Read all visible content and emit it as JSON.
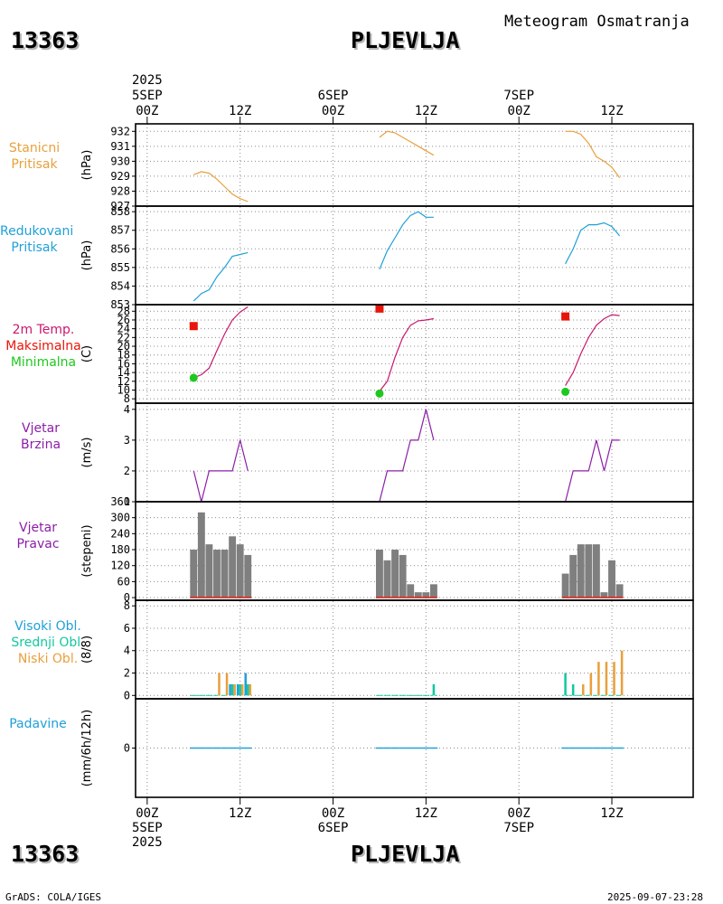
{
  "header": {
    "station_id": "13363",
    "station_name": "PLJEVLJA",
    "product": "Meteogram Osmatranja",
    "year": "2025"
  },
  "footer": {
    "credit": "GrADS: COLA/IGES",
    "timestamp": "2025-09-07-23:28"
  },
  "time_axis": {
    "top_labels": [
      {
        "line1": "5SEP",
        "line2": "00Z",
        "hour": 0
      },
      {
        "line1": "",
        "line2": "12Z",
        "hour": 12
      },
      {
        "line1": "6SEP",
        "line2": "00Z",
        "hour": 24
      },
      {
        "line1": "",
        "line2": "12Z",
        "hour": 36
      },
      {
        "line1": "7SEP",
        "line2": "00Z",
        "hour": 48
      },
      {
        "line1": "",
        "line2": "12Z",
        "hour": 60
      }
    ],
    "range_hours": [
      -1.5,
      70.5
    ]
  },
  "panels": {
    "pressure": {
      "labels": [
        "Stanicni",
        "Pritisak"
      ],
      "unit": "(hPa)",
      "color": "#e8a03c"
    },
    "reduced": {
      "labels": [
        "Redukovani",
        "Pritisak"
      ],
      "unit": "(hPa)",
      "color": "#1fa0d8"
    },
    "temperature": {
      "label_lines": [
        {
          "text": "2m Temp.",
          "color": "#c8186e"
        },
        {
          "text": "Maksimalna",
          "color": "#e8160a"
        },
        {
          "text": "Minimalna",
          "color": "#1ec81e"
        }
      ],
      "unit": "(C)"
    },
    "wind_speed": {
      "labels": [
        "Vjetar",
        "Brzina"
      ],
      "unit": "(m/s)",
      "color": "#8c1ea8"
    },
    "wind_dir": {
      "labels": [
        "Vjetar",
        "Pravac"
      ],
      "unit": "(stepeni)",
      "color": "#8c1ea8"
    },
    "clouds": {
      "label_lines": [
        {
          "text": "Visoki Obl.",
          "color": "#1fa0d8"
        },
        {
          "text": "Srednji Obl.",
          "color": "#12c8a0"
        },
        {
          "text": "Niski Obl.",
          "color": "#e8a03c"
        }
      ],
      "unit": "(8/8)"
    },
    "precip": {
      "labels": [
        "Padavine"
      ],
      "unit": "(mm/6h/12h)",
      "color": "#1fa0d8"
    }
  },
  "chart_data": [
    {
      "type": "line",
      "id": "station_pressure",
      "title": "Stanicni Pritisak",
      "ylabel": "(hPa)",
      "ylim": [
        927,
        932.5
      ],
      "yticks": [
        927,
        928,
        929,
        930,
        931,
        932
      ],
      "series": [
        {
          "name": "5SEP",
          "x": [
            6,
            7,
            8,
            9,
            10,
            11,
            12,
            13
          ],
          "values": [
            929.1,
            929.3,
            929.2,
            928.8,
            928.3,
            927.8,
            927.5,
            927.3
          ]
        },
        {
          "name": "6SEP",
          "x": [
            30,
            31,
            32,
            33,
            34,
            35,
            36,
            37
          ],
          "values": [
            931.6,
            932.0,
            931.9,
            931.6,
            931.3,
            931.0,
            930.7,
            930.4
          ]
        },
        {
          "name": "7SEP",
          "x": [
            54,
            55,
            56,
            57,
            58,
            59,
            60,
            61
          ],
          "values": [
            932.0,
            932.0,
            931.8,
            931.2,
            930.3,
            930.0,
            929.6,
            928.9
          ]
        }
      ]
    },
    {
      "type": "line",
      "id": "reduced_pressure",
      "title": "Redukovani Pritisak",
      "ylabel": "(hPa)",
      "ylim": [
        853,
        858.3
      ],
      "yticks": [
        853,
        854,
        855,
        856,
        857,
        858
      ],
      "series": [
        {
          "name": "5SEP",
          "x": [
            6,
            7,
            8,
            9,
            10,
            11,
            12,
            13
          ],
          "values": [
            853.2,
            853.6,
            853.8,
            854.5,
            855.0,
            855.6,
            855.7,
            855.8
          ]
        },
        {
          "name": "6SEP",
          "x": [
            30,
            31,
            32,
            33,
            34,
            35,
            36,
            37
          ],
          "values": [
            854.9,
            855.9,
            856.6,
            857.3,
            857.8,
            858.0,
            857.7,
            857.7
          ]
        },
        {
          "name": "7SEP",
          "x": [
            54,
            55,
            56,
            57,
            58,
            59,
            60,
            61
          ],
          "values": [
            855.2,
            856.0,
            857.0,
            857.3,
            857.3,
            857.4,
            857.2,
            856.7
          ]
        }
      ]
    },
    {
      "type": "line",
      "id": "temperature",
      "title": "2m Temp.",
      "ylabel": "(C)",
      "ylim": [
        7,
        29.5
      ],
      "yticks": [
        8,
        10,
        12,
        14,
        16,
        18,
        20,
        22,
        24,
        26,
        28
      ],
      "series": [
        {
          "name": "5SEP",
          "x": [
            6,
            7,
            8,
            9,
            10,
            11,
            12,
            13
          ],
          "values": [
            12.8,
            13.5,
            15.0,
            19.0,
            22.8,
            26.0,
            27.8,
            29.0
          ]
        },
        {
          "name": "6SEP",
          "x": [
            30,
            31,
            32,
            33,
            34,
            35,
            36,
            37
          ],
          "values": [
            9.7,
            12.0,
            17.5,
            22.0,
            24.8,
            25.8,
            26.0,
            26.3
          ]
        },
        {
          "name": "7SEP",
          "x": [
            54,
            55,
            56,
            57,
            58,
            59,
            60,
            61
          ],
          "values": [
            11.0,
            14.0,
            18.3,
            22.0,
            24.8,
            26.3,
            27.2,
            27.0
          ]
        }
      ],
      "maximum": [
        {
          "x": 6,
          "value": 24.6
        },
        {
          "x": 30,
          "value": 28.6
        },
        {
          "x": 54,
          "value": 26.8
        }
      ],
      "minimum": [
        {
          "x": 6,
          "value": 12.8
        },
        {
          "x": 30,
          "value": 9.2
        },
        {
          "x": 54,
          "value": 9.6
        }
      ]
    },
    {
      "type": "line",
      "id": "wind_speed",
      "title": "Vjetar Brzina",
      "ylabel": "(m/s)",
      "ylim": [
        1,
        4.2
      ],
      "yticks": [
        1,
        2,
        3,
        4
      ],
      "series": [
        {
          "name": "5SEP",
          "x": [
            6,
            7,
            8,
            9,
            10,
            11,
            12,
            13
          ],
          "values": [
            2,
            1,
            2,
            2,
            2,
            2,
            3,
            2
          ]
        },
        {
          "name": "6SEP",
          "x": [
            30,
            31,
            32,
            33,
            34,
            35,
            36,
            37
          ],
          "values": [
            1,
            2,
            2,
            2,
            3,
            3,
            4,
            3
          ]
        },
        {
          "name": "7SEP",
          "x": [
            54,
            55,
            56,
            57,
            58,
            59,
            60,
            61
          ],
          "values": [
            1,
            2,
            2,
            2,
            3,
            2,
            3,
            3
          ]
        }
      ]
    },
    {
      "type": "bar",
      "id": "wind_direction",
      "title": "Vjetar Pravac",
      "ylabel": "(stepeni)",
      "ylim": [
        -10,
        360
      ],
      "yticks": [
        0,
        60,
        120,
        180,
        240,
        300,
        360
      ],
      "x": [
        6,
        7,
        8,
        9,
        10,
        11,
        12,
        13,
        30,
        31,
        32,
        33,
        34,
        35,
        36,
        37,
        54,
        55,
        56,
        57,
        58,
        59,
        60,
        61
      ],
      "values": [
        180,
        320,
        200,
        180,
        180,
        230,
        200,
        160,
        180,
        140,
        180,
        160,
        50,
        20,
        20,
        50,
        90,
        160,
        200,
        200,
        200,
        20,
        140,
        50
      ]
    },
    {
      "type": "bar",
      "id": "clouds",
      "title": "Oblaci",
      "ylabel": "(8/8)",
      "ylim": [
        -0.3,
        8.5
      ],
      "yticks": [
        0,
        2,
        4,
        6,
        8
      ],
      "x": [
        6,
        7,
        8,
        9,
        10,
        11,
        12,
        13,
        30,
        31,
        32,
        33,
        34,
        35,
        36,
        37,
        54,
        55,
        56,
        57,
        58,
        59,
        60,
        61
      ],
      "series": [
        {
          "name": "Visoki Obl.",
          "values": [
            0,
            0,
            0,
            0,
            0,
            1,
            1,
            2,
            0,
            0,
            0,
            0,
            0,
            0,
            0,
            0,
            0,
            0,
            0,
            0,
            0,
            0,
            0,
            0
          ]
        },
        {
          "name": "Srednji Obl.",
          "values": [
            0,
            0,
            0,
            0,
            0,
            1,
            1,
            1,
            0,
            0,
            0,
            0,
            0,
            0,
            0,
            1,
            2,
            1,
            0,
            0,
            0,
            0,
            0,
            0
          ]
        },
        {
          "name": "Niski Obl.",
          "values": [
            0,
            0,
            0,
            2,
            2,
            1,
            1,
            1,
            0,
            0,
            0,
            0,
            0,
            0,
            0,
            0,
            0,
            0,
            1,
            2,
            3,
            3,
            3,
            4
          ]
        }
      ]
    },
    {
      "type": "bar",
      "id": "precipitation",
      "title": "Padavine",
      "ylabel": "(mm/6h/12h)",
      "ylim": [
        -2,
        2
      ],
      "yticks": [
        0
      ],
      "x": [
        6,
        7,
        8,
        9,
        10,
        11,
        12,
        13,
        30,
        31,
        32,
        33,
        34,
        35,
        36,
        37,
        54,
        55,
        56,
        57,
        58,
        59,
        60,
        61
      ],
      "values": [
        0,
        0,
        0,
        0,
        0,
        0,
        0,
        0,
        0,
        0,
        0,
        0,
        0,
        0,
        0,
        0,
        0,
        0,
        0,
        0,
        0,
        0,
        0,
        0
      ]
    }
  ]
}
